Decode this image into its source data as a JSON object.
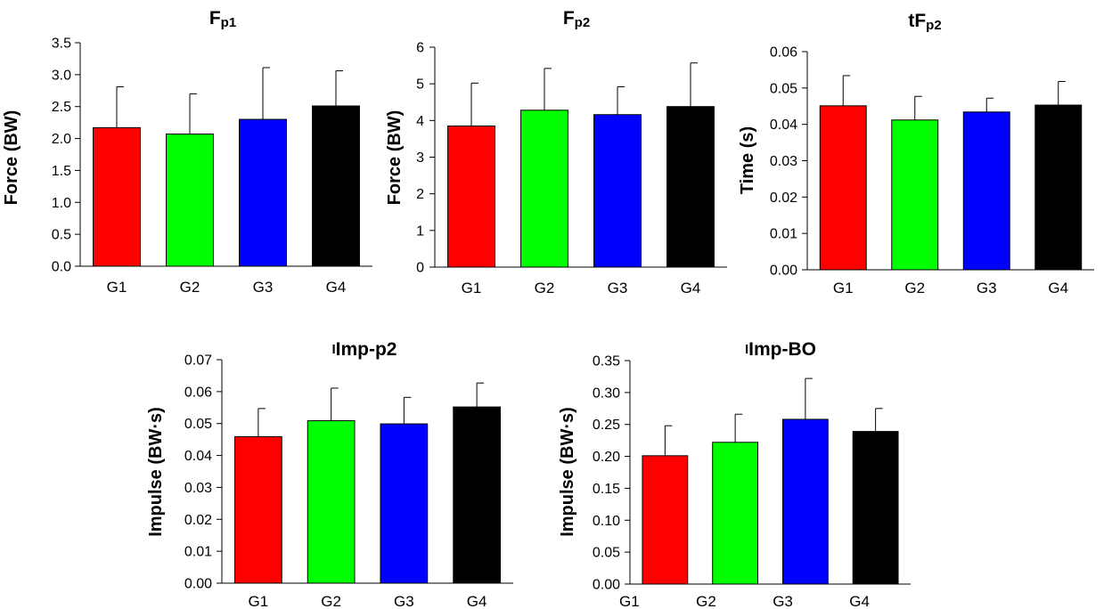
{
  "colors": {
    "G1": "#ff0000",
    "G2": "#00ff00",
    "G3": "#0000ff",
    "G4": "#000000"
  },
  "chart_data": [
    {
      "type": "bar",
      "id": "fp1",
      "title_main": "F",
      "title_sub": "p1",
      "ylabel": "Force (BW)",
      "categories": [
        "G1",
        "G2",
        "G3",
        "G4"
      ],
      "values": [
        2.17,
        2.07,
        2.3,
        2.51
      ],
      "errors": [
        0.64,
        0.63,
        0.81,
        0.55
      ],
      "ylim": [
        0,
        3.5
      ],
      "yticks": [
        "0.0",
        "0.5",
        "1.0",
        "1.5",
        "2.0",
        "2.5",
        "3.0",
        "3.5"
      ]
    },
    {
      "type": "bar",
      "id": "fp2",
      "title_main": "F",
      "title_sub": "p2",
      "ylabel": "Force (BW)",
      "categories": [
        "G1",
        "G2",
        "G3",
        "G4"
      ],
      "values": [
        3.85,
        4.28,
        4.16,
        4.38
      ],
      "errors": [
        1.17,
        1.14,
        0.76,
        1.19
      ],
      "ylim": [
        0,
        6
      ],
      "yticks": [
        "0",
        "1",
        "2",
        "3",
        "4",
        "5",
        "6"
      ]
    },
    {
      "type": "bar",
      "id": "tfp2",
      "title_main": "tF",
      "title_sub": "p2",
      "ylabel": "Time (s)",
      "categories": [
        "G1",
        "G2",
        "G3",
        "G4"
      ],
      "values": [
        0.0451,
        0.0412,
        0.0434,
        0.0453
      ],
      "errors": [
        0.0083,
        0.0065,
        0.0038,
        0.0065
      ],
      "ylim": [
        0,
        0.06
      ],
      "yticks": [
        "0.00",
        "0.01",
        "0.02",
        "0.03",
        "0.04",
        "0.05",
        "0.06"
      ]
    },
    {
      "type": "bar",
      "id": "iimp-p2",
      "title_main": "I",
      "title_sub": "Imp-p2",
      "ylabel": "Impulse (BW·s)",
      "categories": [
        "G1",
        "G2",
        "G3",
        "G4"
      ],
      "values": [
        0.0459,
        0.0509,
        0.0499,
        0.0552
      ],
      "errors": [
        0.0088,
        0.0102,
        0.0083,
        0.0075
      ],
      "ylim": [
        0,
        0.07
      ],
      "yticks": [
        "0.00",
        "0.01",
        "0.02",
        "0.03",
        "0.04",
        "0.05",
        "0.06",
        "0.07"
      ]
    },
    {
      "type": "bar",
      "id": "iimp-bo",
      "title_main": "I",
      "title_sub": "Imp-BO",
      "ylabel": "Impulse (BW·s)",
      "categories": [
        "G1",
        "G2",
        "G3",
        "G4"
      ],
      "values": [
        0.201,
        0.222,
        0.258,
        0.239
      ],
      "errors": [
        0.047,
        0.044,
        0.064,
        0.036
      ],
      "ylim": [
        0,
        0.35
      ],
      "yticks": [
        "0.00",
        "0.05",
        "0.10",
        "0.15",
        "0.20",
        "0.25",
        "0.30",
        "0.35"
      ]
    }
  ]
}
